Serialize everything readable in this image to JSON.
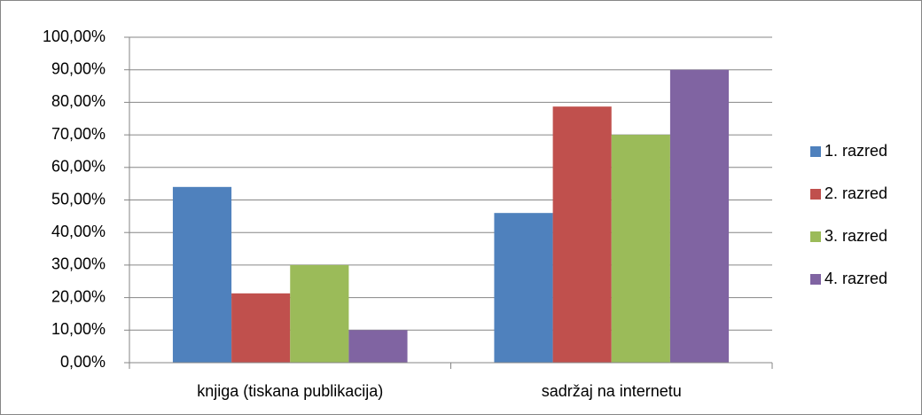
{
  "chart_data": {
    "type": "bar",
    "categories": [
      "knjiga (tiskana publikacija)",
      "sadržaj na internetu"
    ],
    "series": [
      {
        "name": "1. razred",
        "color": "#4f81bd",
        "values": [
          54,
          46
        ]
      },
      {
        "name": "2. razred",
        "color": "#c0504d",
        "values": [
          21.3,
          78.7
        ]
      },
      {
        "name": "3. razred",
        "color": "#9bbb59",
        "values": [
          30,
          70
        ]
      },
      {
        "name": "4. razred",
        "color": "#8064a2",
        "values": [
          10,
          90
        ]
      }
    ],
    "ylim": [
      0,
      100
    ],
    "yticks": [
      {
        "value": 0,
        "label": "0,00%"
      },
      {
        "value": 10,
        "label": "10,00%"
      },
      {
        "value": 20,
        "label": "20,00%"
      },
      {
        "value": 30,
        "label": "30,00%"
      },
      {
        "value": 40,
        "label": "40,00%"
      },
      {
        "value": 50,
        "label": "50,00%"
      },
      {
        "value": 60,
        "label": "60,00%"
      },
      {
        "value": 70,
        "label": "70,00%"
      },
      {
        "value": 80,
        "label": "80,00%"
      },
      {
        "value": 90,
        "label": "90,00%"
      },
      {
        "value": 100,
        "label": "100,00%"
      }
    ],
    "grid": true,
    "legend": "right"
  }
}
